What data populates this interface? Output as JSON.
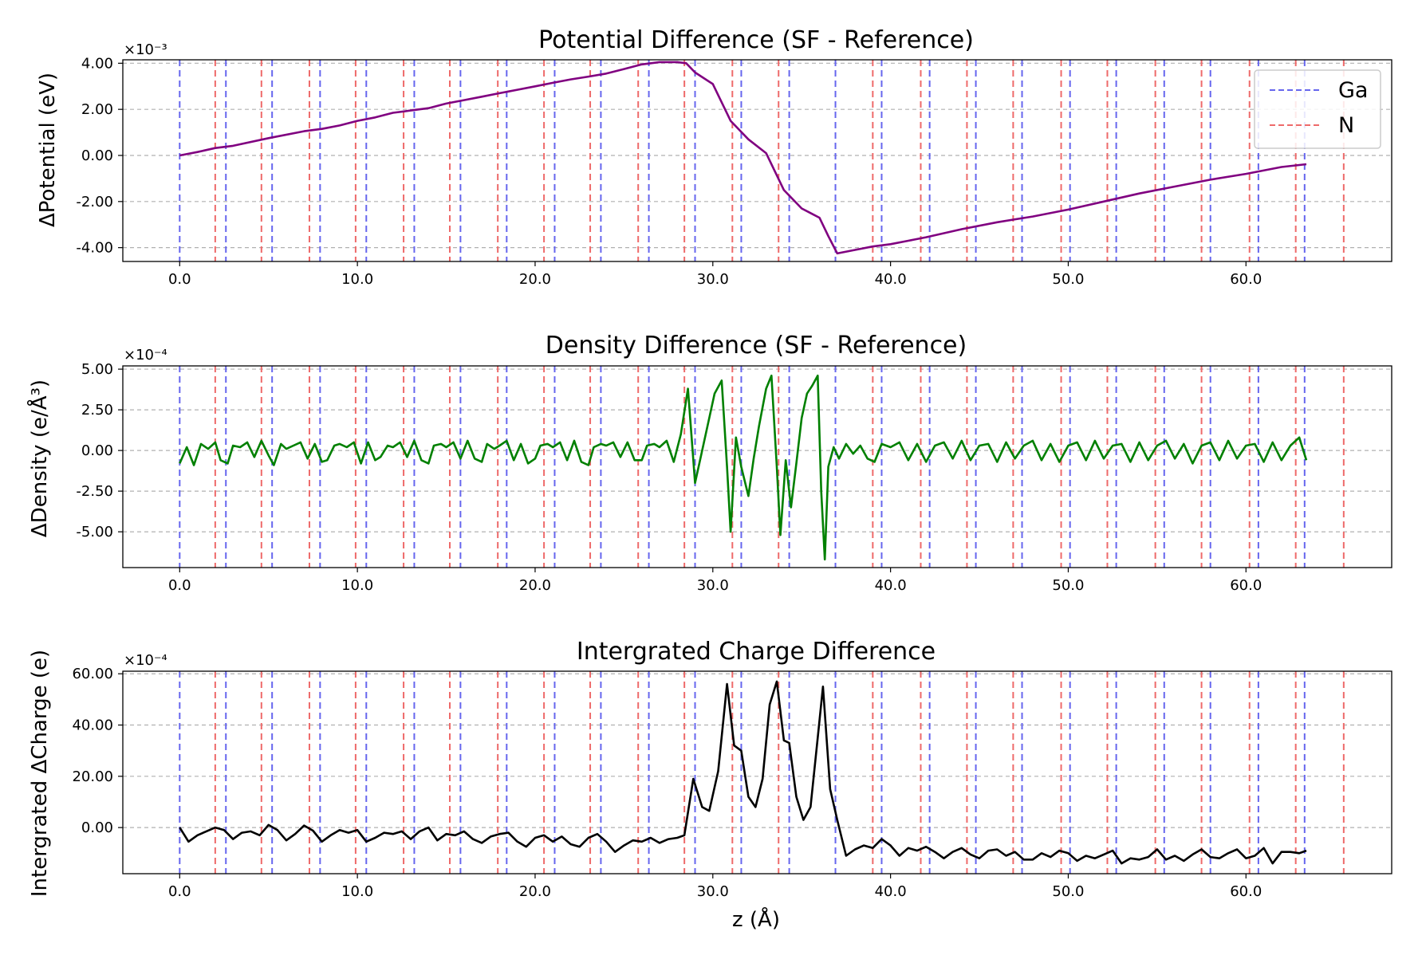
{
  "chart_data": [
    {
      "type": "line",
      "title": "Potential Difference (SF - Reference)",
      "xlabel": "",
      "ylabel": "ΔPotential (eV)",
      "y_multiplier": "×10⁻³",
      "xlim": [
        -3.2,
        68.2
      ],
      "ylim": [
        -4.6,
        4.15
      ],
      "xticks": [
        0,
        10,
        20,
        30,
        40,
        50,
        60
      ],
      "xtick_labels": [
        "0.0",
        "10.0",
        "20.0",
        "30.0",
        "40.0",
        "50.0",
        "60.0"
      ],
      "yticks": [
        -4,
        -2,
        0,
        2,
        4
      ],
      "ytick_labels": [
        "-4.00",
        "-2.00",
        "0.00",
        "2.00",
        "4.00"
      ],
      "grid": "y-dashed",
      "legend": {
        "position": "top-right",
        "entries": [
          {
            "name": "Ga",
            "color": "#6666ee"
          },
          {
            "name": "N",
            "color": "#ee6a6a"
          }
        ]
      },
      "series": [
        {
          "name": "ΔPotential",
          "color": "#800080",
          "x": [
            0,
            1,
            2,
            3,
            5,
            7,
            8,
            9,
            10,
            11,
            12,
            13,
            14,
            15,
            16,
            17,
            18,
            19,
            20,
            21,
            22,
            23,
            24,
            25,
            26,
            27,
            28,
            28.5,
            29,
            30,
            31,
            32,
            33,
            34,
            35,
            36,
            36.5,
            37,
            38,
            39,
            40,
            41,
            42,
            44,
            46,
            48,
            50,
            52,
            54,
            56,
            58,
            60,
            62,
            63.4
          ],
          "y": [
            0,
            0.15,
            0.32,
            0.42,
            0.75,
            1.05,
            1.15,
            1.3,
            1.5,
            1.65,
            1.85,
            1.95,
            2.05,
            2.25,
            2.4,
            2.55,
            2.7,
            2.85,
            3.0,
            3.15,
            3.3,
            3.42,
            3.55,
            3.75,
            3.95,
            4.05,
            4.05,
            4.0,
            3.6,
            3.1,
            1.5,
            0.7,
            0.1,
            -1.5,
            -2.3,
            -2.7,
            -3.5,
            -4.25,
            -4.1,
            -3.95,
            -3.85,
            -3.7,
            -3.55,
            -3.2,
            -2.9,
            -2.65,
            -2.35,
            -2.0,
            -1.65,
            -1.35,
            -1.05,
            -0.8,
            -0.5,
            -0.38
          ]
        }
      ]
    },
    {
      "type": "line",
      "title": "Density Difference (SF - Reference)",
      "xlabel": "",
      "ylabel": "ΔDensity (e/Å³)",
      "y_multiplier": "×10⁻⁴",
      "xlim": [
        -3.2,
        68.2
      ],
      "ylim": [
        -7.2,
        5.2
      ],
      "xticks": [
        0,
        10,
        20,
        30,
        40,
        50,
        60
      ],
      "xtick_labels": [
        "0.0",
        "10.0",
        "20.0",
        "30.0",
        "40.0",
        "50.0",
        "60.0"
      ],
      "yticks": [
        -5,
        -2.5,
        0,
        2.5,
        5
      ],
      "ytick_labels": [
        "-5.00",
        "-2.50",
        "0.00",
        "2.50",
        "5.00"
      ],
      "grid": "y-dashed",
      "series": [
        {
          "name": "ΔDensity",
          "color": "#008000",
          "x": [
            0,
            0.4,
            0.8,
            1.2,
            1.6,
            2.0,
            2.3,
            2.7,
            3.0,
            3.4,
            3.8,
            4.2,
            4.6,
            5.0,
            5.3,
            5.7,
            6.0,
            6.4,
            6.8,
            7.2,
            7.6,
            8.0,
            8.3,
            8.7,
            9.0,
            9.4,
            9.8,
            10.2,
            10.6,
            11.0,
            11.3,
            11.7,
            12.0,
            12.4,
            12.8,
            13.2,
            13.6,
            14.0,
            14.3,
            14.7,
            15.0,
            15.4,
            15.8,
            16.2,
            16.6,
            17.0,
            17.3,
            17.7,
            18.0,
            18.4,
            18.8,
            19.2,
            19.6,
            20.0,
            20.3,
            20.7,
            21.0,
            21.4,
            21.8,
            22.2,
            22.6,
            23.0,
            23.3,
            23.7,
            24.0,
            24.4,
            24.8,
            25.2,
            25.6,
            26.0,
            26.3,
            26.7,
            27.0,
            27.4,
            27.8,
            28.2,
            28.6,
            29.0,
            29.3,
            29.7,
            30.1,
            30.5,
            30.8,
            31.0,
            31.3,
            31.6,
            32.0,
            32.3,
            32.6,
            33.0,
            33.3,
            33.6,
            33.8,
            34.1,
            34.4,
            34.7,
            35.0,
            35.3,
            35.6,
            35.9,
            36.1,
            36.3,
            36.5,
            36.8,
            37.1,
            37.5,
            37.9,
            38.3,
            38.7,
            39.1,
            39.5,
            40.0,
            40.5,
            41.0,
            41.5,
            42.0,
            42.5,
            43.0,
            43.5,
            44.0,
            44.5,
            45.0,
            45.5,
            46.0,
            46.5,
            47.0,
            47.5,
            48.0,
            48.5,
            49.0,
            49.5,
            50.0,
            50.5,
            51.0,
            51.5,
            52.0,
            52.5,
            53.0,
            53.5,
            54.0,
            54.5,
            55.0,
            55.5,
            56.0,
            56.5,
            57.0,
            57.5,
            58.0,
            58.5,
            59.0,
            59.5,
            60.0,
            60.5,
            61.0,
            61.5,
            62.0,
            62.5,
            63.0,
            63.4
          ],
          "y": [
            -0.8,
            0.2,
            -0.9,
            0.4,
            0.1,
            0.5,
            -0.6,
            -0.8,
            0.3,
            0.2,
            0.5,
            -0.4,
            0.6,
            -0.3,
            -0.9,
            0.4,
            0.1,
            0.3,
            0.5,
            -0.5,
            0.4,
            -0.7,
            -0.6,
            0.3,
            0.4,
            0.2,
            0.5,
            -0.8,
            0.5,
            -0.6,
            -0.4,
            0.3,
            0.2,
            0.5,
            -0.4,
            0.6,
            -0.6,
            -0.8,
            0.3,
            0.4,
            0.2,
            0.5,
            -0.5,
            0.6,
            -0.5,
            -0.7,
            0.4,
            0.1,
            0.3,
            0.6,
            -0.6,
            0.4,
            -0.8,
            -0.5,
            0.3,
            0.4,
            0.2,
            0.5,
            -0.6,
            0.6,
            -0.7,
            -0.9,
            0.2,
            0.4,
            0.3,
            0.5,
            -0.4,
            0.5,
            -0.6,
            -0.6,
            0.3,
            0.4,
            0.2,
            0.6,
            -0.7,
            1.0,
            3.8,
            -2.0,
            -0.5,
            1.5,
            3.5,
            4.3,
            -1.0,
            -5.0,
            0.8,
            -1.0,
            -2.8,
            -0.5,
            1.5,
            3.8,
            4.6,
            -1.0,
            -5.2,
            -0.6,
            -3.5,
            -0.8,
            2.0,
            3.5,
            4.0,
            4.6,
            -2.5,
            -6.7,
            -1.0,
            0.2,
            -0.5,
            0.4,
            -0.2,
            0.3,
            -0.5,
            -0.7,
            0.4,
            0.2,
            0.5,
            -0.6,
            0.4,
            -0.7,
            0.3,
            0.5,
            -0.5,
            0.6,
            -0.6,
            0.3,
            0.4,
            -0.7,
            0.5,
            -0.5,
            0.3,
            0.6,
            -0.6,
            0.4,
            -0.7,
            0.3,
            0.5,
            -0.6,
            0.6,
            -0.5,
            0.3,
            0.4,
            -0.7,
            0.5,
            -0.6,
            0.3,
            0.6,
            -0.5,
            0.4,
            -0.8,
            0.3,
            0.5,
            -0.6,
            0.6,
            -0.5,
            0.3,
            0.4,
            -0.7,
            0.5,
            -0.6,
            0.3,
            0.8,
            -0.6
          ]
        }
      ]
    },
    {
      "type": "line",
      "title": "Intergrated Charge Difference",
      "xlabel": "z (Å)",
      "ylabel": "Intergrated ΔCharge (e)",
      "y_multiplier": "×10⁻⁴",
      "xlim": [
        -3.2,
        68.2
      ],
      "ylim": [
        -18,
        61
      ],
      "xticks": [
        0,
        10,
        20,
        30,
        40,
        50,
        60
      ],
      "xtick_labels": [
        "0.0",
        "10.0",
        "20.0",
        "30.0",
        "40.0",
        "50.0",
        "60.0"
      ],
      "yticks": [
        0,
        20,
        40,
        60
      ],
      "ytick_labels": [
        "0.00",
        "20.00",
        "40.00",
        "60.00"
      ],
      "grid": "y-dashed",
      "series": [
        {
          "name": "Integrated ΔCharge",
          "color": "#000000",
          "x": [
            0,
            0.5,
            1.0,
            1.5,
            2.0,
            2.5,
            3.0,
            3.5,
            4.0,
            4.5,
            5.0,
            5.5,
            6.0,
            6.5,
            7.0,
            7.5,
            8.0,
            8.5,
            9.0,
            9.5,
            10.0,
            10.5,
            11.0,
            11.5,
            12.0,
            12.5,
            13.0,
            13.5,
            14.0,
            14.5,
            15.0,
            15.5,
            16.0,
            16.5,
            17.0,
            17.5,
            18.0,
            18.5,
            19.0,
            19.5,
            20.0,
            20.5,
            21.0,
            21.5,
            22.0,
            22.5,
            23.0,
            23.5,
            24.0,
            24.5,
            25.0,
            25.5,
            26.0,
            26.5,
            27.0,
            27.5,
            28.0,
            28.4,
            28.9,
            29.4,
            29.8,
            30.3,
            30.8,
            31.2,
            31.6,
            32.0,
            32.4,
            32.8,
            33.2,
            33.6,
            34.0,
            34.3,
            34.7,
            35.1,
            35.5,
            35.9,
            36.2,
            36.6,
            37.0,
            37.5,
            38.0,
            38.5,
            39.0,
            39.5,
            40.0,
            40.5,
            41.0,
            41.5,
            42.0,
            42.5,
            43.0,
            43.5,
            44.0,
            44.5,
            45.0,
            45.5,
            46.0,
            46.5,
            47.0,
            47.5,
            48.0,
            48.5,
            49.0,
            49.5,
            50.0,
            50.5,
            51.0,
            51.5,
            52.0,
            52.5,
            53.0,
            53.5,
            54.0,
            54.5,
            55.0,
            55.5,
            56.0,
            56.5,
            57.0,
            57.5,
            58.0,
            58.5,
            59.0,
            59.5,
            60.0,
            60.5,
            61.0,
            61.5,
            62.0,
            62.5,
            63.0,
            63.4
          ],
          "y": [
            0,
            -5.5,
            -3,
            -1.5,
            0,
            -1,
            -4.5,
            -2,
            -1.5,
            -3,
            1,
            -1,
            -5,
            -2.5,
            0.8,
            -1.2,
            -5.5,
            -3,
            -1,
            -2,
            -1,
            -5.5,
            -4,
            -2,
            -2.5,
            -1.5,
            -4.5,
            -1.5,
            0,
            -5,
            -2.5,
            -3,
            -1.5,
            -4.5,
            -6,
            -3.5,
            -2.5,
            -2,
            -5.5,
            -7.5,
            -4,
            -3,
            -5.5,
            -3.5,
            -6.5,
            -7.5,
            -4,
            -2.5,
            -5.5,
            -9.5,
            -7,
            -5,
            -5.5,
            -4,
            -6,
            -4.5,
            -4,
            -3,
            19,
            8,
            6.5,
            22,
            56,
            32,
            30,
            12,
            8,
            19,
            48,
            57,
            34,
            33,
            12,
            3,
            8,
            35,
            55,
            15,
            3,
            -11,
            -8.5,
            -7,
            -8,
            -4.5,
            -7,
            -11,
            -8,
            -9,
            -7.5,
            -9.5,
            -12,
            -9.5,
            -8,
            -10.5,
            -12,
            -9,
            -8.5,
            -11,
            -9.5,
            -12.5,
            -12.5,
            -10,
            -11.5,
            -9,
            -10,
            -13,
            -11,
            -12,
            -10.5,
            -9,
            -14,
            -12,
            -12.5,
            -11.5,
            -8.5,
            -12.5,
            -11,
            -13,
            -10.5,
            -8.5,
            -11.5,
            -12,
            -10,
            -8.5,
            -12,
            -11,
            -8,
            -14,
            -9.5,
            -9.5,
            -10,
            -9
          ]
        }
      ]
    }
  ],
  "atom_lines": {
    "ga_color": "#6666ee",
    "n_color": "#ee6a6a",
    "ga_z": [
      0.0,
      2.6,
      5.2,
      7.9,
      10.5,
      13.2,
      15.8,
      18.4,
      21.1,
      23.7,
      26.4,
      29.0,
      31.6,
      34.3,
      36.9,
      39.5,
      42.2,
      44.8,
      47.4,
      50.1,
      52.7,
      55.4,
      58.0,
      60.7,
      63.3
    ],
    "n_z": [
      2.0,
      4.6,
      7.3,
      9.9,
      12.6,
      15.2,
      17.9,
      20.5,
      23.1,
      25.8,
      28.4,
      31.1,
      33.7,
      39.0,
      41.7,
      44.3,
      46.9,
      49.6,
      52.2,
      54.9,
      57.5,
      60.2,
      62.8,
      65.5
    ]
  }
}
